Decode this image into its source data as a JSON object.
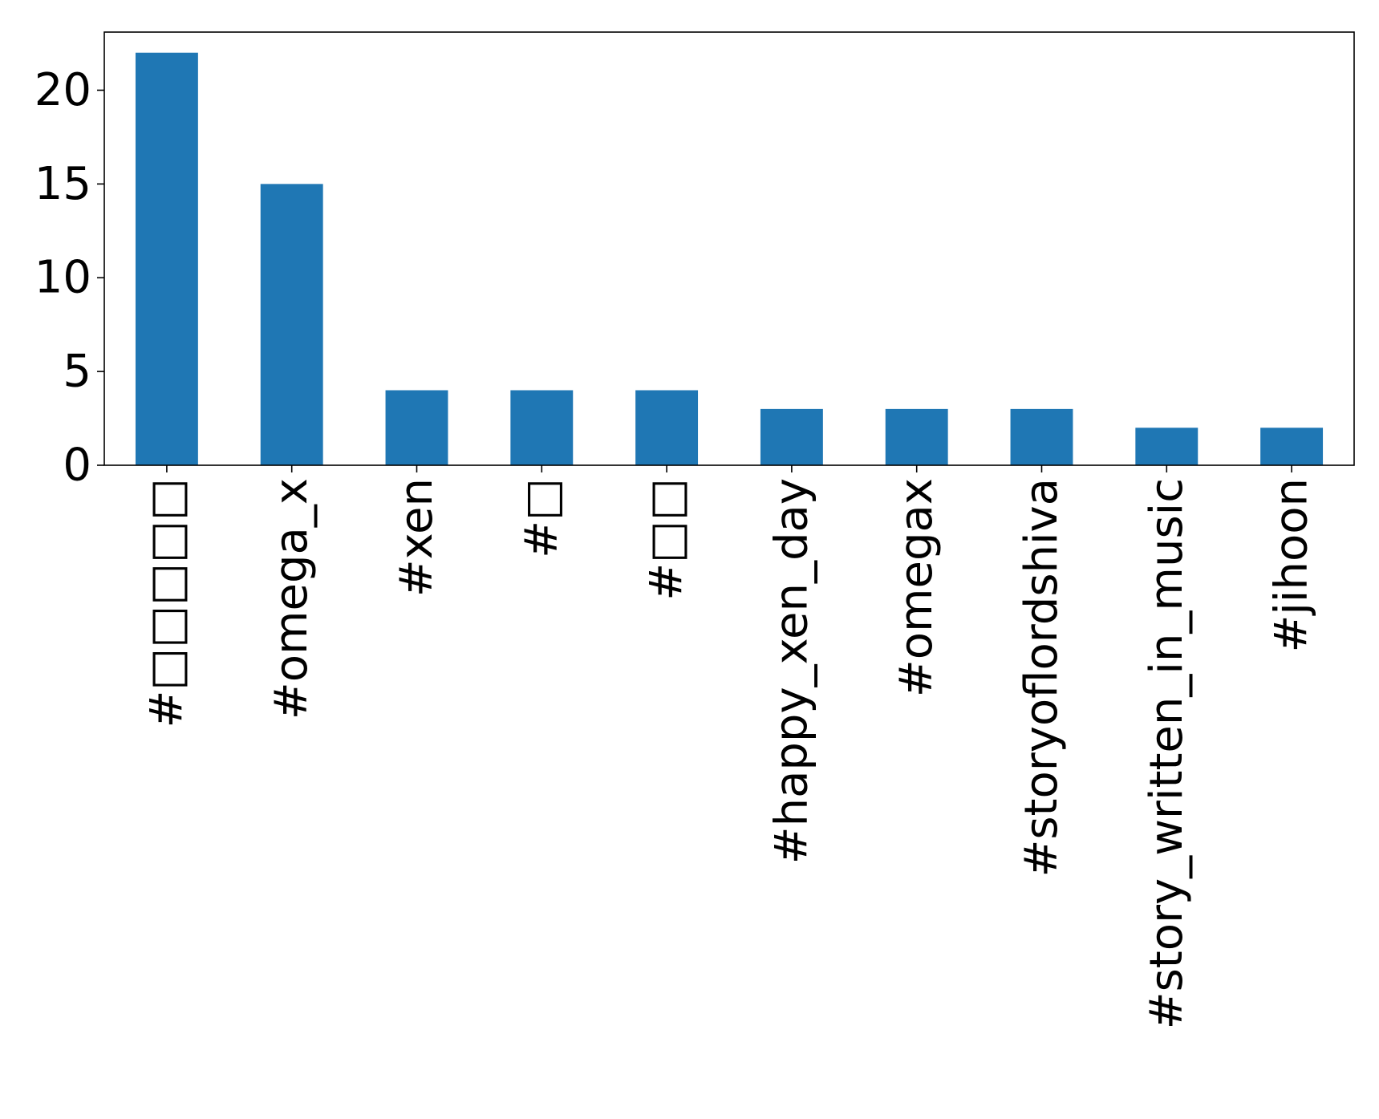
{
  "chart_data": {
    "type": "bar",
    "title": "",
    "xlabel": "",
    "ylabel": "",
    "categories": [
      "#□□□□□",
      "#omega_x",
      "#xen",
      "#□",
      "#□□",
      "#happy_xen_day",
      "#omegax",
      "#storyoflordshiva",
      "#story_written_in_music",
      "#jihoon"
    ],
    "values": [
      22,
      15,
      4,
      4,
      4,
      3,
      3,
      3,
      2,
      2
    ],
    "ylim": [
      0,
      23.1
    ],
    "yticks": [
      0,
      5,
      10,
      15,
      20
    ],
    "grid": false,
    "legend": "none",
    "colors": {
      "bar": "#1f77b4",
      "axis": "#000000",
      "background": "#ffffff"
    }
  }
}
